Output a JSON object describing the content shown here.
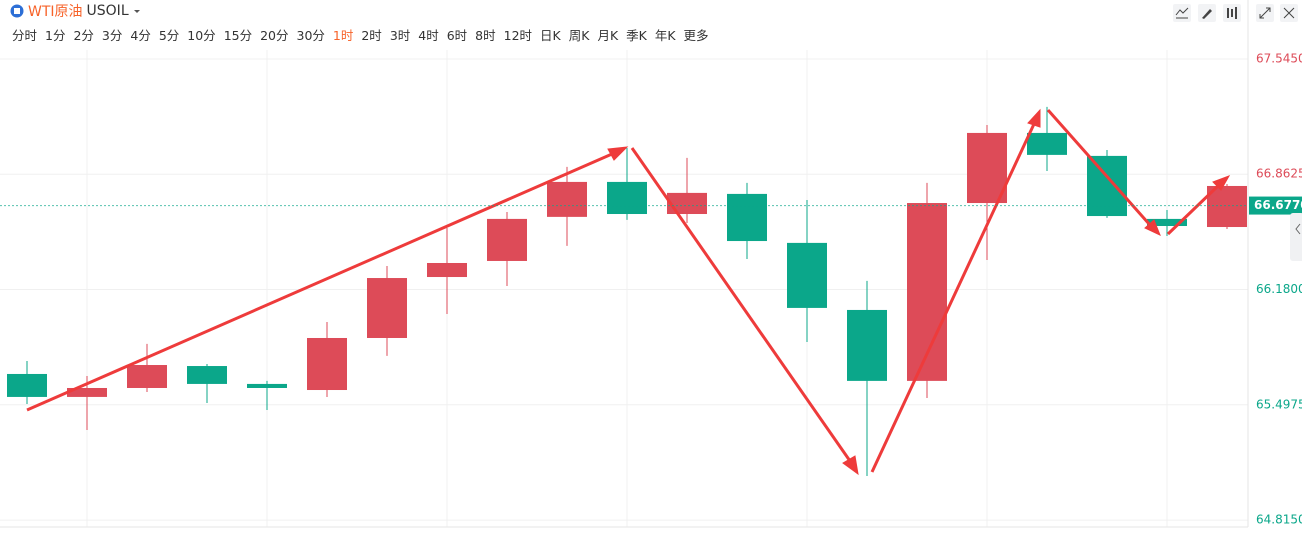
{
  "toolbar": {
    "name": "WTI原油",
    "symbol": "USOIL",
    "intervals": [
      "分时",
      "1分",
      "2分",
      "3分",
      "4分",
      "5分",
      "10分",
      "15分",
      "20分",
      "30分",
      "1时",
      "2时",
      "3时",
      "4时",
      "6时",
      "8时",
      "12时",
      "日K",
      "周K",
      "月K",
      "季K",
      "年K",
      "更多"
    ],
    "active_interval": "1时"
  },
  "chart_data": {
    "type": "candlestick",
    "up_color": "#dd4b58",
    "down_color": "#0ba78a",
    "open": [
      65.68,
      65.544,
      65.597,
      65.727,
      65.621,
      65.585,
      65.893,
      66.254,
      66.349,
      66.61,
      66.817,
      66.627,
      66.746,
      66.456,
      66.059,
      65.639,
      66.692,
      67.107,
      66.971,
      66.598,
      66.55
    ],
    "high": [
      65.757,
      65.668,
      65.858,
      65.739,
      65.639,
      65.988,
      66.319,
      66.544,
      66.639,
      66.906,
      67.018,
      66.959,
      66.811,
      66.71,
      66.231,
      66.811,
      67.154,
      67.261,
      67.006,
      66.651,
      66.805
    ],
    "low": [
      65.502,
      65.348,
      65.573,
      65.508,
      65.467,
      65.544,
      65.787,
      66.035,
      66.201,
      66.438,
      66.592,
      66.574,
      66.361,
      65.869,
      65.076,
      65.538,
      66.355,
      66.882,
      66.604,
      66.497,
      66.538
    ],
    "close": [
      65.544,
      65.597,
      65.733,
      65.621,
      65.597,
      65.893,
      66.248,
      66.337,
      66.598,
      66.817,
      66.627,
      66.752,
      66.467,
      66.071,
      65.639,
      66.692,
      67.107,
      66.977,
      66.615,
      66.556,
      66.793
    ],
    "ylim": [
      64.774,
      67.598
    ],
    "yticks": [
      {
        "value": 67.545,
        "label": "67.5450"
      },
      {
        "value": 66.8625,
        "label": "66.8625"
      },
      {
        "value": 66.18,
        "label": "66.1800"
      },
      {
        "value": 65.4975,
        "label": "65.4975"
      },
      {
        "value": 64.815,
        "label": "64.8150"
      }
    ],
    "current_price": {
      "value": 66.677,
      "label": "66.6770"
    },
    "grid": true
  }
}
